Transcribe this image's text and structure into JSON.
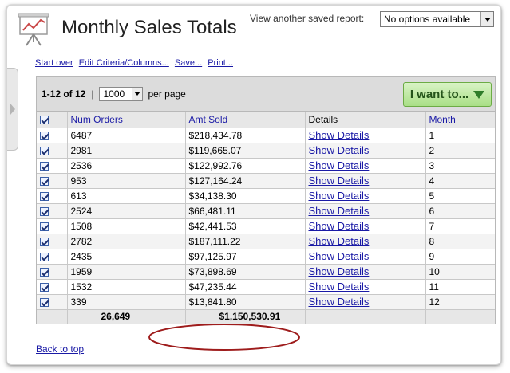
{
  "header": {
    "title": "Monthly Sales Totals",
    "saved_report_label": "View another saved report:",
    "saved_report_value": "No options available"
  },
  "links": [
    "Start over",
    "Edit Criteria/Columns...",
    "Save...",
    "Print..."
  ],
  "toolbar": {
    "range": "1-12 of 12",
    "separator": "|",
    "per_page_value": "1000",
    "per_page_label": "per page",
    "action_button": "I want to..."
  },
  "table": {
    "columns": [
      "Num Orders",
      "Amt Sold",
      "Details",
      "Month"
    ],
    "rows": [
      {
        "num_orders": "6487",
        "amt_sold": "$218,434.78",
        "details": "Show Details",
        "month": "1"
      },
      {
        "num_orders": "2981",
        "amt_sold": "$119,665.07",
        "details": "Show Details",
        "month": "2"
      },
      {
        "num_orders": "2536",
        "amt_sold": "$122,992.76",
        "details": "Show Details",
        "month": "3"
      },
      {
        "num_orders": "953",
        "amt_sold": "$127,164.24",
        "details": "Show Details",
        "month": "4"
      },
      {
        "num_orders": "613",
        "amt_sold": "$34,138.30",
        "details": "Show Details",
        "month": "5"
      },
      {
        "num_orders": "2524",
        "amt_sold": "$66,481.11",
        "details": "Show Details",
        "month": "6"
      },
      {
        "num_orders": "1508",
        "amt_sold": "$42,441.53",
        "details": "Show Details",
        "month": "7"
      },
      {
        "num_orders": "2782",
        "amt_sold": "$187,111.22",
        "details": "Show Details",
        "month": "8"
      },
      {
        "num_orders": "2435",
        "amt_sold": "$97,125.97",
        "details": "Show Details",
        "month": "9"
      },
      {
        "num_orders": "1959",
        "amt_sold": "$73,898.69",
        "details": "Show Details",
        "month": "10"
      },
      {
        "num_orders": "1532",
        "amt_sold": "$47,235.44",
        "details": "Show Details",
        "month": "11"
      },
      {
        "num_orders": "339",
        "amt_sold": "$13,841.80",
        "details": "Show Details",
        "month": "12"
      }
    ],
    "totals": {
      "num_orders": "26,649",
      "amt_sold": "$1,150,530.91"
    }
  },
  "footer": {
    "back_to_top": "Back to top"
  },
  "colors": {
    "link": "#1a1aa6",
    "action_button": "#a9df86",
    "highlight_ellipse": "#9e1c1c"
  },
  "icons": {
    "report": "presentation-chart-icon",
    "checkbox": "checkbox-checked-icon"
  }
}
